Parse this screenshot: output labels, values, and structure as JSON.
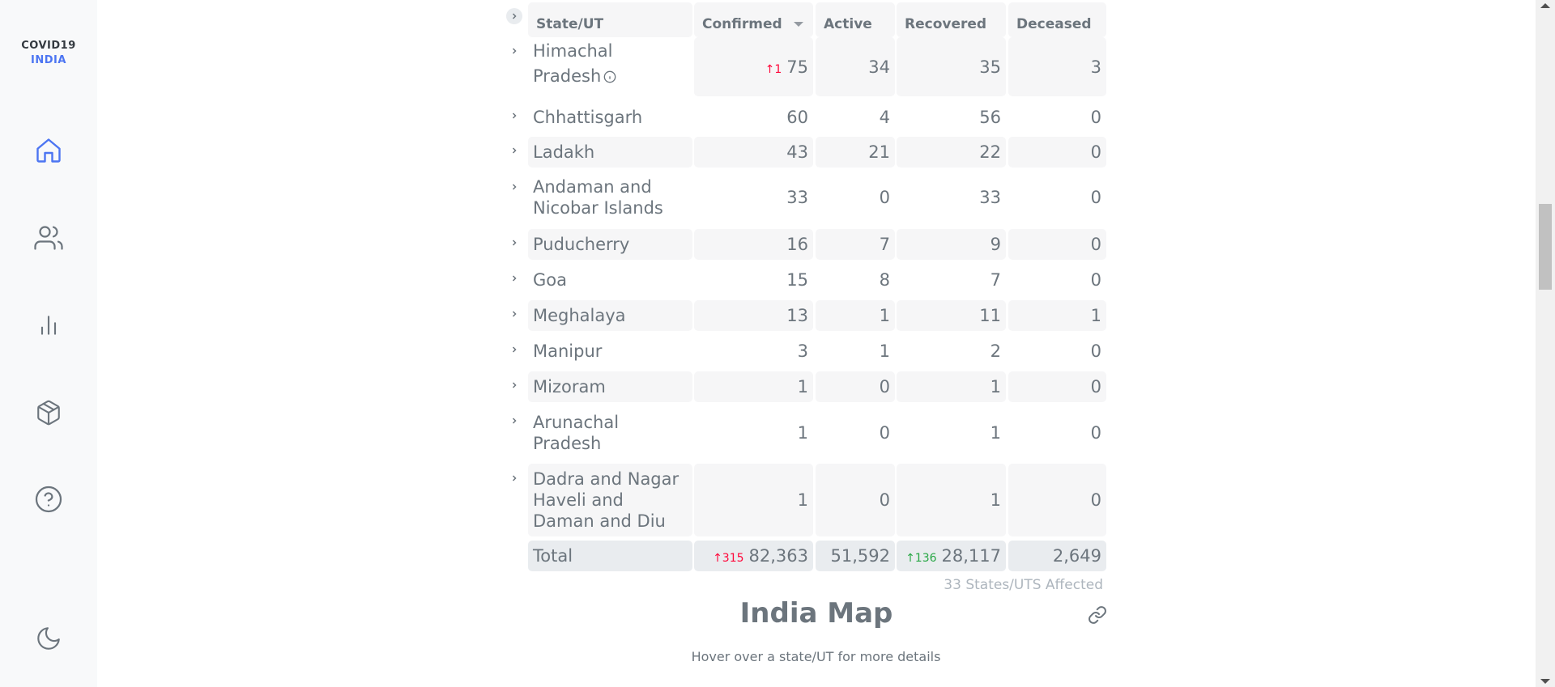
{
  "app": {
    "logo_line1": "COVID19",
    "logo_line2": "INDIA"
  },
  "sidebar": {
    "items": [
      {
        "name": "home",
        "icon": "home-icon",
        "active": true
      },
      {
        "name": "demographics",
        "icon": "users-icon"
      },
      {
        "name": "deep-dive",
        "icon": "bar-chart-icon"
      },
      {
        "name": "essentials",
        "icon": "package-icon"
      },
      {
        "name": "faq",
        "icon": "help-circle-icon"
      },
      {
        "name": "dark-mode",
        "icon": "moon-icon"
      }
    ],
    "accent_color": "#4c75f2"
  },
  "table": {
    "headers": {
      "state": "State/UT",
      "confirmed": "Confirmed",
      "active": "Active",
      "recovered": "Recovered",
      "deceased": "Deceased"
    },
    "rows": [
      {
        "state_line1": "Himachal",
        "state_line2": "Pradesh",
        "confirmed": "75",
        "confirmed_delta": "↑1",
        "active": "34",
        "recovered": "35",
        "deceased": "3"
      },
      {
        "state": "Chhattisgarh",
        "confirmed": "60",
        "active": "4",
        "recovered": "56",
        "deceased": "0"
      },
      {
        "state": "Ladakh",
        "confirmed": "43",
        "active": "21",
        "recovered": "22",
        "deceased": "0"
      },
      {
        "state_line1": "Andaman and",
        "state_line2": "Nicobar Islands",
        "confirmed": "33",
        "active": "0",
        "recovered": "33",
        "deceased": "0"
      },
      {
        "state": "Puducherry",
        "confirmed": "16",
        "active": "7",
        "recovered": "9",
        "deceased": "0"
      },
      {
        "state": "Goa",
        "confirmed": "15",
        "active": "8",
        "recovered": "7",
        "deceased": "0"
      },
      {
        "state": "Meghalaya",
        "confirmed": "13",
        "active": "1",
        "recovered": "11",
        "deceased": "1"
      },
      {
        "state": "Manipur",
        "confirmed": "3",
        "active": "1",
        "recovered": "2",
        "deceased": "0"
      },
      {
        "state": "Mizoram",
        "confirmed": "1",
        "active": "0",
        "recovered": "1",
        "deceased": "0"
      },
      {
        "state_line1": "Arunachal",
        "state_line2": "Pradesh",
        "confirmed": "1",
        "active": "0",
        "recovered": "1",
        "deceased": "0"
      },
      {
        "state_line1": "Dadra and Nagar",
        "state_line2": "Haveli and",
        "state_line3": "Daman and Diu",
        "confirmed": "1",
        "active": "0",
        "recovered": "1",
        "deceased": "0"
      }
    ],
    "total": {
      "label": "Total",
      "confirmed": "82,363",
      "confirmed_delta": "↑315",
      "active": "51,592",
      "recovered": "28,117",
      "recovered_delta": "↑136",
      "deceased": "2,649"
    },
    "affected_text": "33 States/UTS Affected"
  },
  "map": {
    "title": "India Map",
    "subtitle": "Hover over a state/UT for more details"
  },
  "colors": {
    "delta_red": "#ff073a",
    "delta_green": "#28a745",
    "cell_bg": "#f6f6f7"
  }
}
